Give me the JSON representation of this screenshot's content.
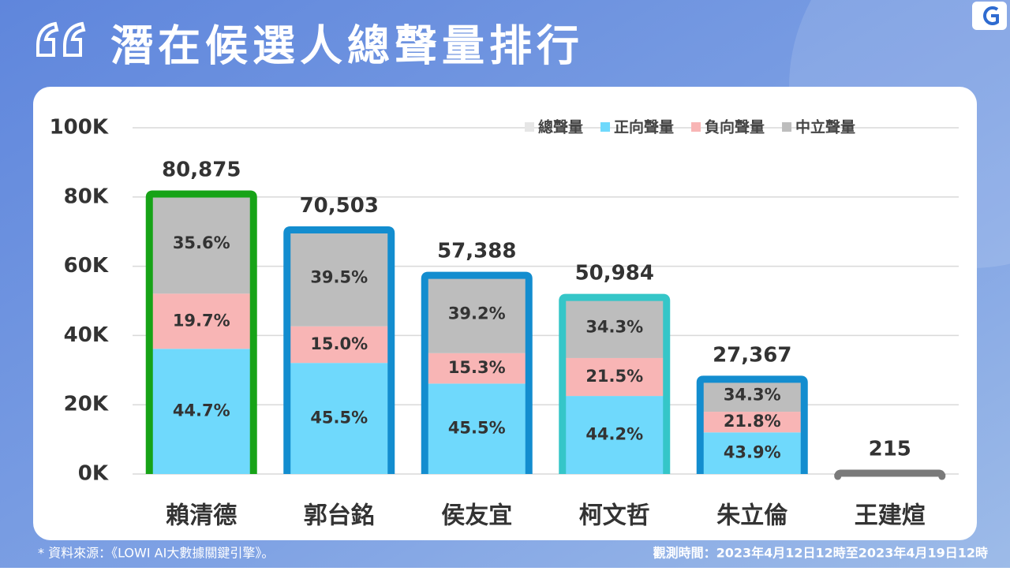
{
  "chart_data": {
    "type": "stacked_bar",
    "title": "潛在候選人總聲量排行",
    "categories": [
      "賴清德",
      "郭台銘",
      "侯友宜",
      "柯文哲",
      "朱立倫",
      "王建煊"
    ],
    "total": {
      "name": "總聲量",
      "color": "#e6e6e6",
      "values": [
        80875,
        70503,
        57388,
        50984,
        27367,
        215
      ],
      "value_labels": [
        "80,875",
        "70,503",
        "57,388",
        "50,984",
        "27,367",
        "215"
      ]
    },
    "series": [
      {
        "name": "正向聲量",
        "color": "#6fd9fc",
        "values": [
          44.7,
          45.5,
          45.5,
          44.2,
          43.9,
          null
        ],
        "value_labels": [
          "44.7%",
          "45.5%",
          "45.5%",
          "44.2%",
          "43.9%",
          null
        ]
      },
      {
        "name": "負向聲量",
        "color": "#f8b5b5",
        "values": [
          19.7,
          15.0,
          15.3,
          21.5,
          21.8,
          null
        ],
        "value_labels": [
          "19.7%",
          "15.0%",
          "15.3%",
          "21.5%",
          "21.8%",
          null
        ]
      },
      {
        "name": "中立聲量",
        "color": "#bdbdbd",
        "values": [
          35.6,
          39.5,
          39.2,
          34.3,
          34.3,
          null
        ],
        "value_labels": [
          "35.6%",
          "39.5%",
          "39.2%",
          "34.3%",
          "34.3%",
          null
        ]
      }
    ],
    "outline_colors": [
      "#17a317",
      "#138dcf",
      "#138dcf",
      "#35c6c8",
      "#138dcf",
      "#7a7a7a"
    ],
    "ylim": [
      0,
      100000
    ],
    "yticks": [
      {
        "value": 0,
        "label": "0K"
      },
      {
        "value": 20000,
        "label": "20K"
      },
      {
        "value": 40000,
        "label": "40K"
      },
      {
        "value": 60000,
        "label": "60K"
      },
      {
        "value": 80000,
        "label": "80K"
      },
      {
        "value": 100000,
        "label": "100K"
      }
    ],
    "grid": true,
    "legend": "top-right"
  },
  "source": "* 資料來源：《LOWI AI大數據關鍵引擎》。",
  "period": "觀測時間：2023年4月12日12時至2023年4月19日12時"
}
